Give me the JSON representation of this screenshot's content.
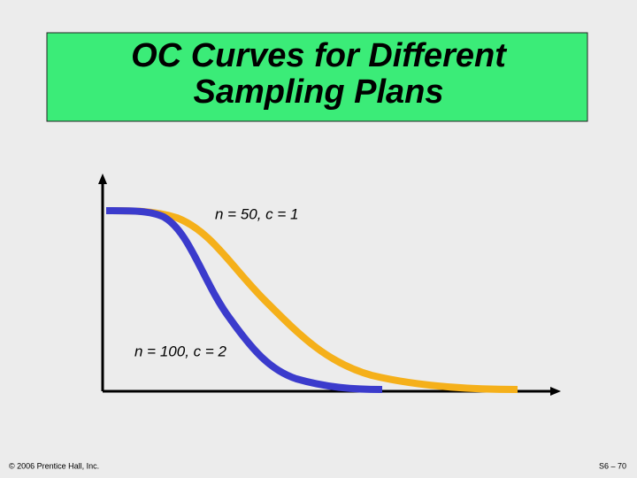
{
  "header": {
    "title_lines": [
      "OC Curves for Different",
      "Sampling Plans"
    ]
  },
  "diagram": {
    "labels": [
      "n = 50, c = 1",
      "n = 100, c = 2"
    ]
  },
  "footer": {
    "copyright": "© 2006 Prentice Hall, Inc.",
    "page": "S6 – 70"
  }
}
